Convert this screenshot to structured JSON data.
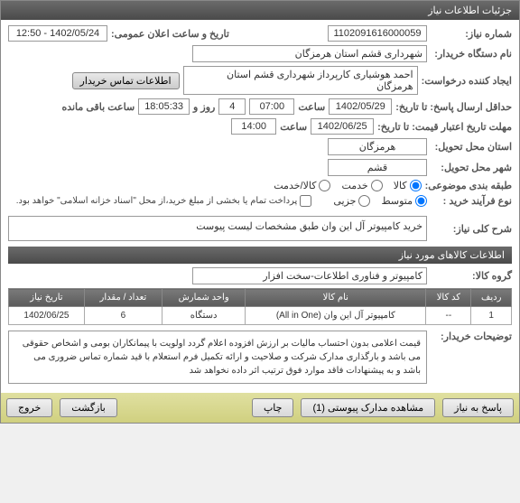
{
  "titlebar": "جزئیات اطلاعات نیاز",
  "fields": {
    "niaz_number_label": "شماره نیاز:",
    "niaz_number": "1102091616000059",
    "announce_datetime_label": "تاریخ و ساعت اعلان عمومی:",
    "announce_datetime": "1402/05/24 - 12:50",
    "buyer_org_label": "نام دستگاه خریدار:",
    "buyer_org": "شهرداری قشم استان هرمزگان",
    "creator_label": "ایجاد کننده درخواست:",
    "creator": "احمد هوشیاری کارپرداز شهرداری قشم استان هرمزگان",
    "contact_btn": "اطلاعات تماس خریدار",
    "deadline_label": "حداقل ارسال پاسخ: تا تاریخ:",
    "deadline_date": "1402/05/29",
    "deadline_hour": "07:00",
    "remaining_days": "4",
    "remaining_time": "18:05:33",
    "remaining_suffix": "ساعت باقی مانده",
    "hour_label": "ساعت",
    "day_label": "روز و",
    "validity_label": "مهلت تاریخ اعتبار قیمت: تا تاریخ:",
    "validity_date": "1402/06/25",
    "validity_hour": "14:00",
    "province_label": "استان محل تحویل:",
    "province": "هرمزگان",
    "city_label": "شهر محل تحویل:",
    "city": "قشم",
    "category_label": "طبقه بندی موضوعی:",
    "cat_kala": "کالا",
    "cat_khadamat": "خدمت",
    "cat_both": "کالا/خدمت",
    "process_label": "نوع فرآیند خرید :",
    "proc_metvaset": "متوسط",
    "proc_jozei": "جزیی",
    "payment_note": "پرداخت تمام یا بخشی از مبلغ خرید،از محل \"اسناد خزانه اسلامی\" خواهد بود.",
    "desc_label": "شرح کلی نیاز:",
    "desc_value": "خرید کامپیوتر آل این وان طبق مشخصات لیست پیوست",
    "items_header": "اطلاعات کالاهای مورد نیاز",
    "group_label": "گروه کالا:",
    "group_value": "کامپیوتر و فناوری اطلاعات-سخت افزار",
    "buyer_notes_label": "توضیحات خریدار:",
    "buyer_notes": "قیمت اعلامی بدون احتساب مالیات بر ارزش افزوده اعلام گردد اولویت با پیمانکاران بومی و اشخاص حقوقی می باشد و بارگذاری مدارک شرکت و صلاحیت و ارائه تکمیل فرم استعلام با قید شماره تماس ضروری می باشد و به پیشنهادات فاقد موارد فوق ترتیب اثر داده نخواهد شد"
  },
  "table": {
    "headers": [
      "ردیف",
      "کد کالا",
      "نام کالا",
      "واحد شمارش",
      "تعداد / مقدار",
      "تاریخ نیاز"
    ],
    "rows": [
      [
        "1",
        "--",
        "کامپیوتر آل این وان (All in One)",
        "دستگاه",
        "6",
        "1402/06/25"
      ]
    ]
  },
  "footer": {
    "respond": "پاسخ به نیاز",
    "attachments": "مشاهده مدارک پیوستی (1)",
    "print": "چاپ",
    "back": "بازگشت",
    "exit": "خروج"
  }
}
